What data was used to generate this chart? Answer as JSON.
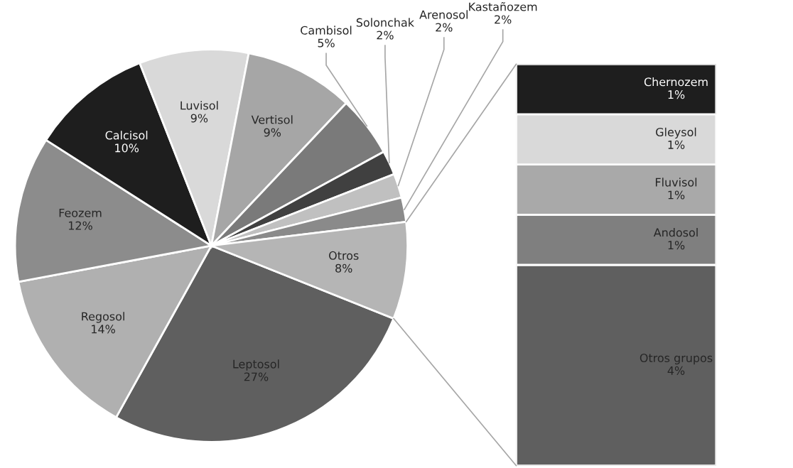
{
  "chart_data": [
    {
      "type": "pie",
      "categories": [
        "Leptosol",
        "Regosol",
        "Feozem",
        "Calcisol",
        "Luvisol",
        "Vertisol",
        "Cambisol",
        "Solonchak",
        "Arenosol",
        "Kastañozem",
        "Otros"
      ],
      "values": [
        27,
        14,
        12,
        10,
        9,
        9,
        5,
        2,
        2,
        2,
        8
      ],
      "value_labels": [
        "27%",
        "14%",
        "12%",
        "10%",
        "9%",
        "9%",
        "5%",
        "2%",
        "2%",
        "2%",
        "8%"
      ],
      "colors": [
        "#5f5f5f",
        "#b0b0b0",
        "#8c8c8c",
        "#1e1e1e",
        "#d9d9d9",
        "#a6a6a6",
        "#7a7a7a",
        "#404040",
        "#c0c0c0",
        "#8a8a8a",
        "#b5b5b5"
      ]
    },
    {
      "type": "bar",
      "stacked": true,
      "categories": [
        null
      ],
      "series": [
        {
          "name": "Otros grupos",
          "color": "#5f5f5f",
          "values": [
            4
          ],
          "value_labels": [
            "4%"
          ]
        },
        {
          "name": "Andosol",
          "color": "#7f7f7f",
          "values": [
            1
          ],
          "value_labels": [
            "1%"
          ]
        },
        {
          "name": "Fluvisol",
          "color": "#a9a9a9",
          "values": [
            1
          ],
          "value_labels": [
            "1%"
          ]
        },
        {
          "name": "Gleysol",
          "color": "#d9d9d9",
          "values": [
            1
          ],
          "value_labels": [
            "1%"
          ]
        },
        {
          "name": "Chernozem",
          "color": "#1e1e1e",
          "values": [
            1
          ],
          "value_labels": [
            "1%"
          ]
        }
      ]
    }
  ]
}
